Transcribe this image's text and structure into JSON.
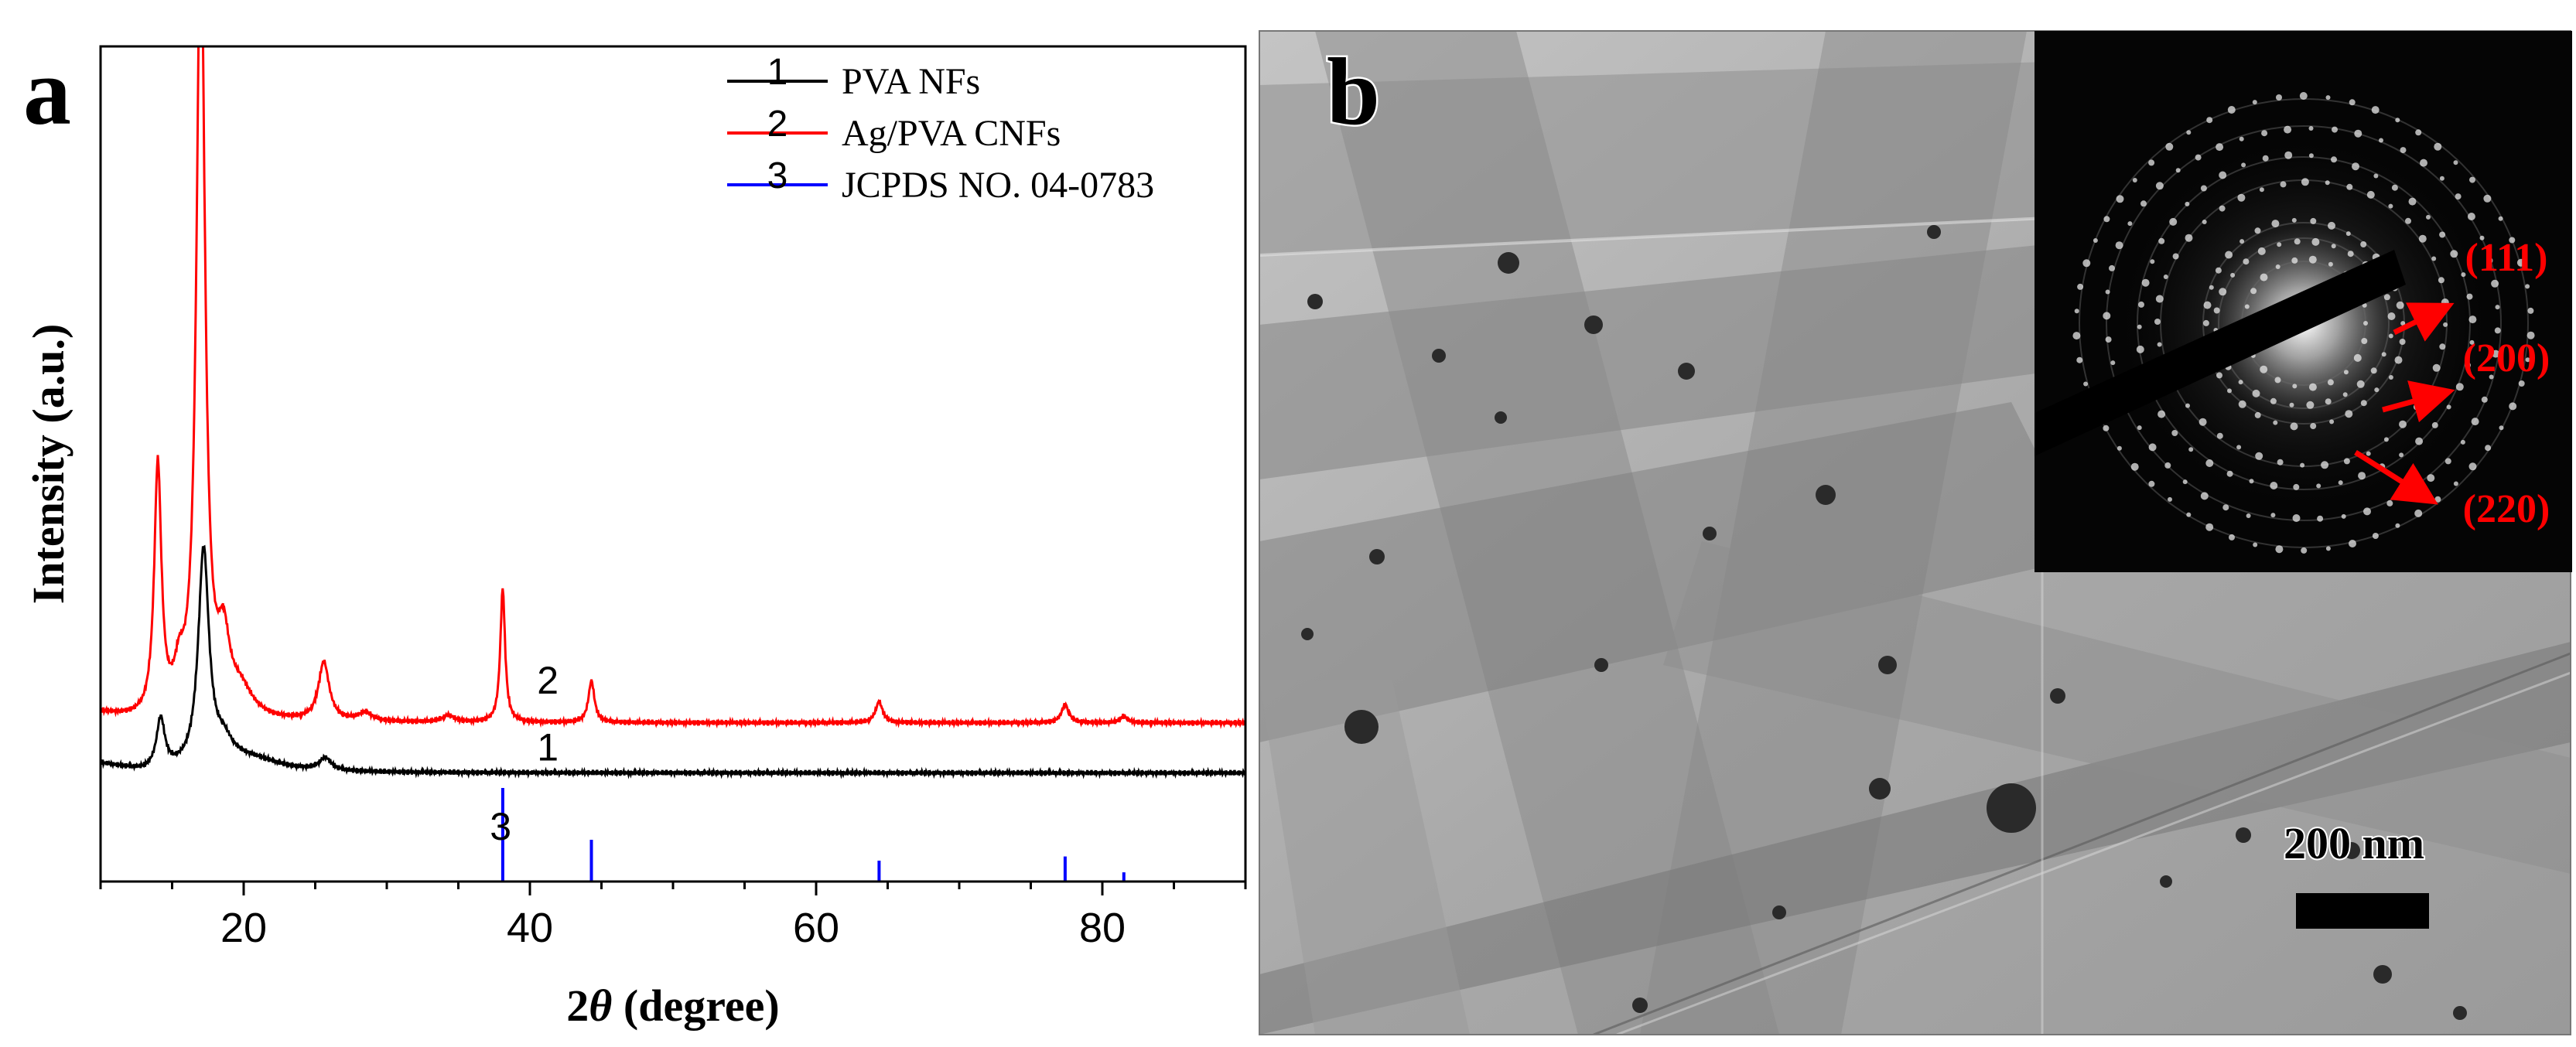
{
  "panel_a": {
    "label": "a",
    "legend": [
      {
        "num": "1",
        "label": "PVA NFs",
        "color": "#000000"
      },
      {
        "num": "2",
        "label": "Ag/PVA CNFs",
        "color": "#ff0000"
      },
      {
        "num": "3",
        "label": "JCPDS NO. 04-0783",
        "color": "#0000ff"
      }
    ]
  },
  "panel_b": {
    "label": "b",
    "saed_labels": [
      "(111)",
      "(200)",
      "(220)"
    ],
    "scale_bar_label": "200 nm"
  },
  "chart_data": {
    "type": "line",
    "title": "",
    "xlabel_prefix": "2",
    "xlabel_theta": "θ",
    "xlabel_suffix": " (degree)",
    "ylabel": "Intensity (a.u.)",
    "xlim": [
      10,
      90
    ],
    "ylim": [
      0,
      100
    ],
    "x_ticks": [
      20,
      40,
      60,
      80
    ],
    "y_ticks_shown": false,
    "series": [
      {
        "name": "PVA NFs",
        "num": "1",
        "color": "#000000",
        "baseline": 13,
        "peaks": [
          [
            14.2,
            6,
            0.35
          ],
          [
            17.2,
            26,
            0.45
          ],
          [
            18.6,
            2.5,
            0.8
          ],
          [
            25.7,
            1.5,
            0.5
          ],
          [
            20.5,
            1.5,
            2.5
          ]
        ],
        "curve_label_x": 40.5,
        "curve_label_y": 14.5
      },
      {
        "name": "Ag/PVA CNFs",
        "num": "2",
        "color": "#ff0000",
        "baseline": 19,
        "peaks": [
          [
            14.0,
            30,
            0.3
          ],
          [
            15.5,
            4,
            0.4
          ],
          [
            17.0,
            96,
            0.35
          ],
          [
            18.6,
            8,
            0.5
          ],
          [
            19.8,
            3,
            1.0
          ],
          [
            25.6,
            7,
            0.45
          ],
          [
            28.5,
            1,
            0.6
          ],
          [
            34.3,
            0.8,
            0.5
          ],
          [
            38.1,
            16,
            0.2
          ],
          [
            44.3,
            5,
            0.25
          ],
          [
            64.4,
            2.5,
            0.3
          ],
          [
            77.4,
            2.2,
            0.3
          ],
          [
            81.5,
            0.8,
            0.3
          ]
        ],
        "curve_label_x": 40.5,
        "curve_label_y": 22.5
      },
      {
        "name": "JCPDS NO. 04-0783",
        "num": "3",
        "color": "#0000ff",
        "type": "sticks",
        "base": 0,
        "sticks": [
          [
            38.1,
            11.2
          ],
          [
            44.3,
            5.0
          ],
          [
            64.4,
            2.5
          ],
          [
            77.4,
            3.0
          ],
          [
            81.5,
            1.1
          ]
        ],
        "curve_label_x": 37.2,
        "curve_label_y": 5.0
      }
    ]
  }
}
